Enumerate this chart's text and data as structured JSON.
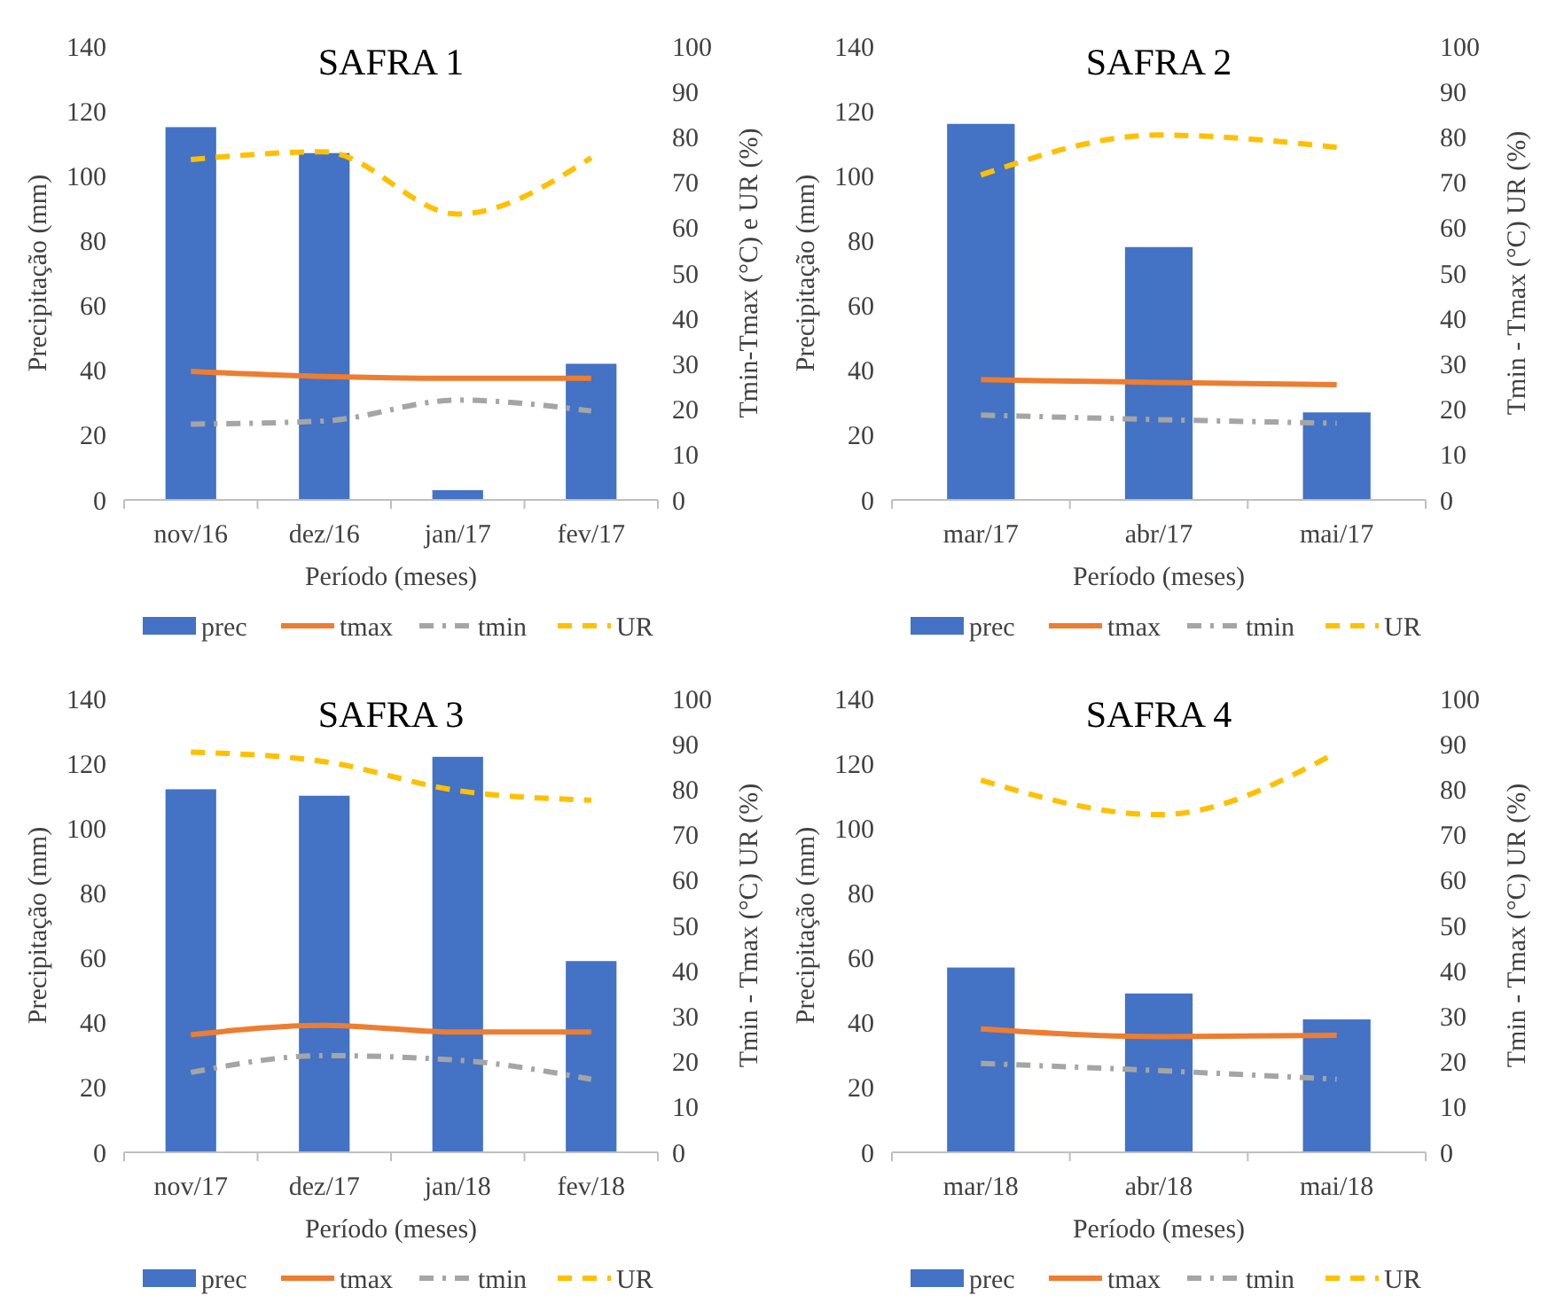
{
  "chart_data": [
    {
      "type": "bar",
      "title": "SAFRA 1",
      "xlabel": "Período (meses)",
      "ylabel": "Precipitação (mm)",
      "y2label": "Tmin-Tmax (°C) e UR (%)",
      "categories": [
        "nov/16",
        "dez/16",
        "jan/17",
        "fev/17"
      ],
      "ylim": [
        0,
        140
      ],
      "yticks": [
        0,
        20,
        40,
        60,
        80,
        100,
        120,
        140
      ],
      "y2lim": [
        0,
        100
      ],
      "y2ticks": [
        0,
        10,
        20,
        30,
        40,
        50,
        60,
        70,
        80,
        90,
        100
      ],
      "legend": "bottom",
      "grid": false,
      "series": [
        {
          "name": "prec",
          "color": "#4472c4",
          "values": [
            115,
            107,
            3,
            42
          ]
        },
        {
          "name": "tmax",
          "type": "line",
          "axis": "y2",
          "color": "#ed7d31",
          "line_style": "solid",
          "values": [
            28.3,
            27.2,
            26.8,
            26.8
          ]
        },
        {
          "name": "tmin",
          "type": "line",
          "axis": "y2",
          "color": "#a5a5a5",
          "line_style": "dashdot",
          "values": [
            16.7,
            17.4,
            22,
            19.6
          ]
        },
        {
          "name": "UR",
          "type": "line",
          "axis": "y2",
          "color": "#ffc000",
          "line_style": "dashed",
          "values": [
            75,
            76.7,
            63,
            75.4
          ]
        }
      ]
    },
    {
      "type": "bar",
      "title": "SAFRA 2",
      "xlabel": "Período (meses)",
      "ylabel": "Precipitação (mm)",
      "y2label": "Tmin - Tmax (°C) UR (%)",
      "categories": [
        "mar/17",
        "abr/17",
        "mai/17"
      ],
      "ylim": [
        0,
        140
      ],
      "yticks": [
        0,
        20,
        40,
        60,
        80,
        100,
        120,
        140
      ],
      "y2lim": [
        0,
        100
      ],
      "y2ticks": [
        0,
        10,
        20,
        30,
        40,
        50,
        60,
        70,
        80,
        90,
        100
      ],
      "legend": "bottom",
      "grid": false,
      "series": [
        {
          "name": "prec",
          "color": "#4472c4",
          "values": [
            116,
            78,
            27
          ]
        },
        {
          "name": "tmax",
          "type": "line",
          "axis": "y2",
          "color": "#ed7d31",
          "line_style": "solid",
          "values": [
            26.5,
            25.9,
            25.4
          ]
        },
        {
          "name": "tmin",
          "type": "line",
          "axis": "y2",
          "color": "#a5a5a5",
          "line_style": "dashdot",
          "values": [
            18.7,
            17.7,
            16.9
          ]
        },
        {
          "name": "UR",
          "type": "line",
          "axis": "y2",
          "color": "#ffc000",
          "line_style": "dashed",
          "values": [
            71.6,
            80.4,
            77.7
          ]
        }
      ]
    },
    {
      "type": "bar",
      "title": "SAFRA 3",
      "xlabel": "Período (meses)",
      "ylabel": "Precipitação (mm)",
      "y2label": "Tmin - Tmax (°C) UR (%)",
      "categories": [
        "nov/17",
        "dez/17",
        "jan/18",
        "fev/18"
      ],
      "ylim": [
        0,
        140
      ],
      "yticks": [
        0,
        20,
        40,
        60,
        80,
        100,
        120,
        140
      ],
      "y2lim": [
        0,
        100
      ],
      "y2ticks": [
        0,
        10,
        20,
        30,
        40,
        50,
        60,
        70,
        80,
        90,
        100
      ],
      "legend": "bottom",
      "grid": false,
      "series": [
        {
          "name": "prec",
          "color": "#4472c4",
          "values": [
            112,
            110,
            122,
            59
          ]
        },
        {
          "name": "tmax",
          "type": "line",
          "axis": "y2",
          "color": "#ed7d31",
          "line_style": "solid",
          "values": [
            25.9,
            28,
            26.5,
            26.5
          ]
        },
        {
          "name": "tmin",
          "type": "line",
          "axis": "y2",
          "color": "#a5a5a5",
          "line_style": "dashdot",
          "values": [
            17.6,
            21.3,
            20.3,
            16.1
          ]
        },
        {
          "name": "UR",
          "type": "line",
          "axis": "y2",
          "color": "#ffc000",
          "line_style": "dashed",
          "values": [
            88.2,
            86.1,
            79.7,
            77.6
          ]
        }
      ]
    },
    {
      "type": "bar",
      "title": "SAFRA 4",
      "xlabel": "Período (meses)",
      "ylabel": "Precipitação (mm)",
      "y2label": "Tmin - Tmax (°C) UR (%)",
      "categories": [
        "mar/18",
        "abr/18",
        "mai/18"
      ],
      "ylim": [
        0,
        140
      ],
      "yticks": [
        0,
        20,
        40,
        60,
        80,
        100,
        120,
        140
      ],
      "y2lim": [
        0,
        100
      ],
      "y2ticks": [
        0,
        10,
        20,
        30,
        40,
        50,
        60,
        70,
        80,
        90,
        100
      ],
      "legend": "bottom",
      "grid": false,
      "series": [
        {
          "name": "prec",
          "color": "#4472c4",
          "values": [
            57,
            49,
            41
          ]
        },
        {
          "name": "tmax",
          "type": "line",
          "axis": "y2",
          "color": "#ed7d31",
          "line_style": "solid",
          "values": [
            27.2,
            25.5,
            25.8
          ]
        },
        {
          "name": "tmin",
          "type": "line",
          "axis": "y2",
          "color": "#a5a5a5",
          "line_style": "dashdot",
          "values": [
            19.6,
            18,
            16.1
          ]
        },
        {
          "name": "UR",
          "type": "line",
          "axis": "y2",
          "color": "#ffc000",
          "line_style": "dashed",
          "values": [
            82,
            74.4,
            88.1
          ]
        }
      ]
    }
  ]
}
